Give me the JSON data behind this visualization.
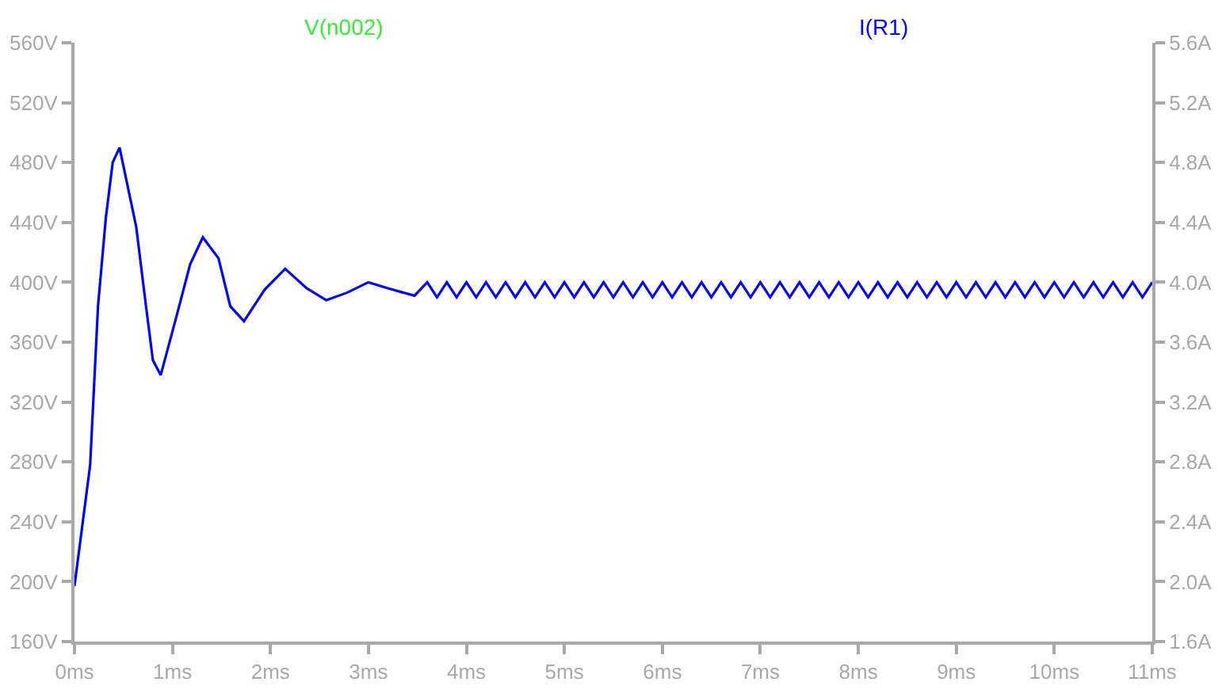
{
  "chart_data": {
    "type": "line",
    "xlim": [
      0,
      11
    ],
    "xticks": [
      {
        "value": 0,
        "label": "0ms"
      },
      {
        "value": 1,
        "label": "1ms"
      },
      {
        "value": 2,
        "label": "2ms"
      },
      {
        "value": 3,
        "label": "3ms"
      },
      {
        "value": 4,
        "label": "4ms"
      },
      {
        "value": 5,
        "label": "5ms"
      },
      {
        "value": 6,
        "label": "6ms"
      },
      {
        "value": 7,
        "label": "7ms"
      },
      {
        "value": 8,
        "label": "8ms"
      },
      {
        "value": 9,
        "label": "9ms"
      },
      {
        "value": 10,
        "label": "10ms"
      },
      {
        "value": 11,
        "label": "11ms"
      }
    ],
    "ylim": [
      160,
      560
    ],
    "yticks": [
      {
        "value": 160,
        "label": "160V"
      },
      {
        "value": 200,
        "label": "200V"
      },
      {
        "value": 240,
        "label": "240V"
      },
      {
        "value": 280,
        "label": "280V"
      },
      {
        "value": 320,
        "label": "320V"
      },
      {
        "value": 360,
        "label": "360V"
      },
      {
        "value": 400,
        "label": "400V"
      },
      {
        "value": 440,
        "label": "440V"
      },
      {
        "value": 480,
        "label": "480V"
      },
      {
        "value": 520,
        "label": "520V"
      },
      {
        "value": 560,
        "label": "560V"
      }
    ],
    "y2lim": [
      1.6,
      5.6
    ],
    "y2ticks": [
      {
        "value": 1.6,
        "label": "1.6A"
      },
      {
        "value": 2.0,
        "label": "2.0A"
      },
      {
        "value": 2.4,
        "label": "2.4A"
      },
      {
        "value": 2.8,
        "label": "2.8A"
      },
      {
        "value": 3.2,
        "label": "3.2A"
      },
      {
        "value": 3.6,
        "label": "3.6A"
      },
      {
        "value": 4.0,
        "label": "4.0A"
      },
      {
        "value": 4.4,
        "label": "4.4A"
      },
      {
        "value": 4.8,
        "label": "4.8A"
      },
      {
        "value": 5.2,
        "label": "5.2A"
      },
      {
        "value": 5.6,
        "label": "5.6A"
      }
    ],
    "grid": false,
    "marker": "none",
    "line_style": "solid",
    "series": [
      {
        "name": "V(n002)",
        "color": "#33ee33"
      },
      {
        "name": "I(R1)",
        "color": "#0000ff",
        "axis": "y2",
        "x": [
          0,
          0.16,
          0.24,
          0.32,
          0.39,
          0.46,
          0.63,
          0.73,
          0.8,
          0.88,
          1.04,
          1.18,
          1.31,
          1.47,
          1.59,
          1.73,
          1.94,
          2.15,
          2.37,
          2.57,
          2.78,
          3.0,
          3.2,
          3.47,
          3.6,
          3.7,
          3.8,
          3.9,
          4.0,
          4.1,
          4.2,
          4.3,
          4.4,
          4.5,
          4.6,
          4.7,
          4.8,
          4.9,
          5.0,
          5.1,
          5.2,
          5.3,
          5.4,
          5.5,
          5.6,
          5.7,
          5.8,
          5.9,
          6.0,
          6.1,
          6.2,
          6.3,
          6.4,
          6.5,
          6.6,
          6.7,
          6.8,
          6.9,
          7.0,
          7.1,
          7.2,
          7.3,
          7.4,
          7.5,
          7.6,
          7.7,
          7.8,
          7.9,
          8.0,
          8.1,
          8.2,
          8.3,
          8.4,
          8.5,
          8.6,
          8.7,
          8.8,
          8.9,
          9.0,
          9.1,
          9.2,
          9.3,
          9.4,
          9.5,
          9.6,
          9.7,
          9.8,
          9.9,
          10.0,
          10.1,
          10.2,
          10.3,
          10.4,
          10.5,
          10.6,
          10.7,
          10.8,
          10.9,
          11.0
        ],
        "values": [
          1.97,
          2.78,
          3.84,
          4.43,
          4.8,
          4.9,
          4.37,
          3.84,
          3.48,
          3.38,
          3.77,
          4.12,
          4.3,
          4.16,
          3.84,
          3.74,
          3.95,
          4.09,
          3.96,
          3.88,
          3.93,
          4.0,
          3.96,
          3.91,
          4.0,
          3.9,
          4.0,
          3.9,
          4.0,
          3.9,
          4.0,
          3.9,
          4.0,
          3.9,
          4.0,
          3.9,
          4.0,
          3.9,
          4.0,
          3.9,
          4.0,
          3.9,
          4.0,
          3.9,
          4.0,
          3.9,
          4.0,
          3.9,
          4.0,
          3.9,
          4.0,
          3.9,
          4.0,
          3.9,
          4.0,
          3.9,
          4.0,
          3.9,
          4.0,
          3.9,
          4.0,
          3.9,
          4.0,
          3.9,
          4.0,
          3.9,
          4.0,
          3.9,
          4.0,
          3.9,
          4.0,
          3.9,
          4.0,
          3.9,
          4.0,
          3.9,
          4.0,
          3.9,
          4.0,
          3.9,
          4.0,
          3.9,
          4.0,
          3.9,
          4.0,
          3.9,
          4.0,
          3.9,
          4.0,
          3.9,
          4.0,
          3.9,
          4.0,
          3.9,
          4.0,
          3.9,
          4.0,
          3.9,
          4.0
        ]
      }
    ]
  }
}
